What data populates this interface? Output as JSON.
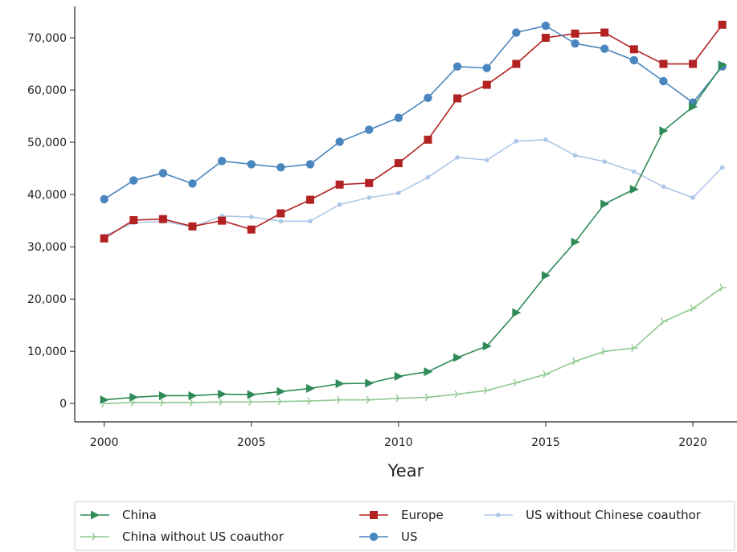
{
  "chart_data": {
    "type": "line",
    "xlabel": "Year",
    "ylabel": "",
    "xlim": [
      1999,
      2021.5
    ],
    "ylim": [
      -3500,
      76000
    ],
    "x_ticks": [
      2000,
      2005,
      2010,
      2015,
      2020
    ],
    "y_ticks": [
      0,
      10000,
      20000,
      30000,
      40000,
      50000,
      60000,
      70000
    ],
    "y_tick_labels": [
      "0",
      "10,000",
      "20,000",
      "30,000",
      "40,000",
      "50,000",
      "60,000",
      "70,000"
    ],
    "grid": false,
    "legend_position": "bottom",
    "x": [
      2000,
      2001,
      2002,
      2003,
      2004,
      2005,
      2006,
      2007,
      2008,
      2009,
      2010,
      2011,
      2012,
      2013,
      2014,
      2015,
      2016,
      2017,
      2018,
      2019,
      2020,
      2021
    ],
    "series": [
      {
        "name": "China",
        "color": "#2e8b57",
        "marker": "triangle-right",
        "values": [
          700,
          1200,
          1500,
          1500,
          1800,
          1700,
          2300,
          2900,
          3800,
          3900,
          5200,
          6100,
          8800,
          11000,
          17400,
          24500,
          30900,
          38200,
          41000,
          52200,
          56800,
          64800
        ]
      },
      {
        "name": "China without US coauthor",
        "color": "#8fc98f",
        "marker": "tri",
        "values": [
          0,
          200,
          200,
          200,
          300,
          300,
          400,
          500,
          700,
          700,
          1000,
          1200,
          1800,
          2500,
          4000,
          5600,
          8100,
          10000,
          10600,
          15700,
          18200,
          22200
        ]
      },
      {
        "name": "Europe",
        "color": "#b22222",
        "marker": "square",
        "values": [
          31600,
          35100,
          35300,
          33900,
          35000,
          33300,
          36400,
          39000,
          41900,
          42200,
          46000,
          50500,
          58400,
          61000,
          65000,
          70000,
          70800,
          71000,
          67800,
          65000,
          65000,
          72500
        ]
      },
      {
        "name": "US",
        "color": "#4a86be",
        "marker": "circle",
        "values": [
          39100,
          42700,
          44100,
          42100,
          46400,
          45800,
          45200,
          45800,
          50100,
          52400,
          54700,
          58500,
          64500,
          64200,
          71000,
          72300,
          68900,
          67900,
          65700,
          61700,
          57600,
          64500
        ]
      },
      {
        "name": "US without Chinese coauthor",
        "color": "#aec7e8",
        "marker": "dot",
        "values": [
          32100,
          34600,
          34900,
          33800,
          35900,
          35700,
          34900,
          34900,
          38100,
          39400,
          40300,
          43300,
          47100,
          46600,
          50200,
          50500,
          47500,
          46300,
          44400,
          41500,
          39400,
          45200
        ]
      }
    ],
    "legend": {
      "entries": [
        "China",
        "China without US coauthor",
        "Europe",
        "US",
        "US without Chinese coauthor"
      ]
    }
  }
}
